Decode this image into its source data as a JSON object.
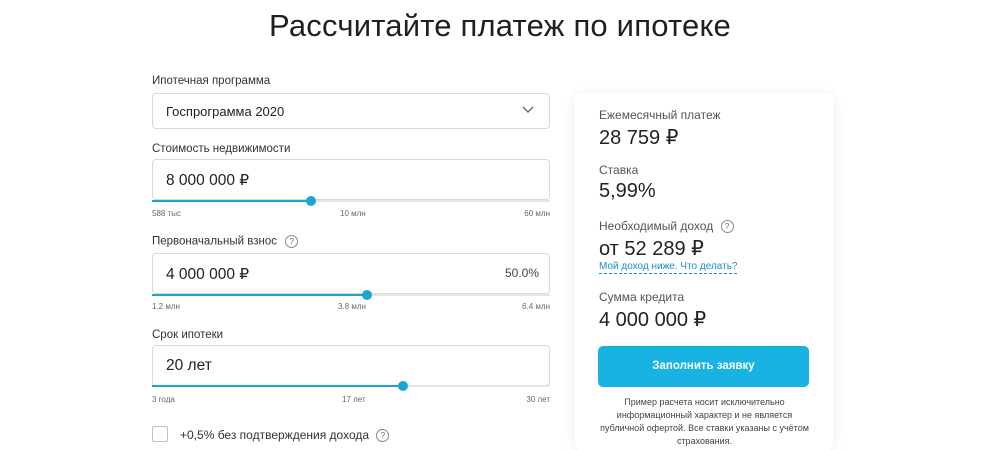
{
  "page": {
    "title": "Рассчитайте платеж по ипотеке"
  },
  "form": {
    "program": {
      "label": "Ипотечная программа",
      "value": "Госпрограмма 2020"
    },
    "price": {
      "label": "Стоимость недвижимости",
      "value": "8 000 000 ₽",
      "ticks": [
        "588 тыс",
        "10 млн",
        "60 млн"
      ],
      "slider_fraction": 0.4
    },
    "down_payment": {
      "label": "Первоначальный взнос",
      "value": "4 000 000 ₽",
      "percent": "50.0%",
      "ticks": [
        "1.2 млн",
        "3.8 млн",
        "6.4 млн"
      ],
      "slider_fraction": 0.54
    },
    "term": {
      "label": "Срок ипотеки",
      "value": "20 лет",
      "ticks": [
        "3 года",
        "17 лет",
        "30 лет"
      ],
      "slider_fraction": 0.63
    },
    "no_income_proof": {
      "label": "+0,5% без подтверждения дохода",
      "checked": false
    }
  },
  "summary": {
    "monthly_label": "Ежемесячный платеж",
    "monthly_value": "28 759 ₽",
    "rate_label": "Ставка",
    "rate_value": "5,99%",
    "income_label": "Необходимый доход",
    "income_value": "от 52 289 ₽",
    "income_link": "Мой доход ниже. Что делать?",
    "loan_label": "Сумма кредита",
    "loan_value": "4 000 000 ₽",
    "apply_button": "Заполнить заявку",
    "disclaimer": "Пример расчета носит исключительно информационный характер и не является публичной офертой. Все ставки указаны с учётом страхования."
  },
  "icons": {
    "help": "?",
    "chevron": "chevron-down-icon"
  },
  "colors": {
    "accent": "#1aa6cf",
    "button": "#18b3e3",
    "link": "#1a8fc7"
  }
}
